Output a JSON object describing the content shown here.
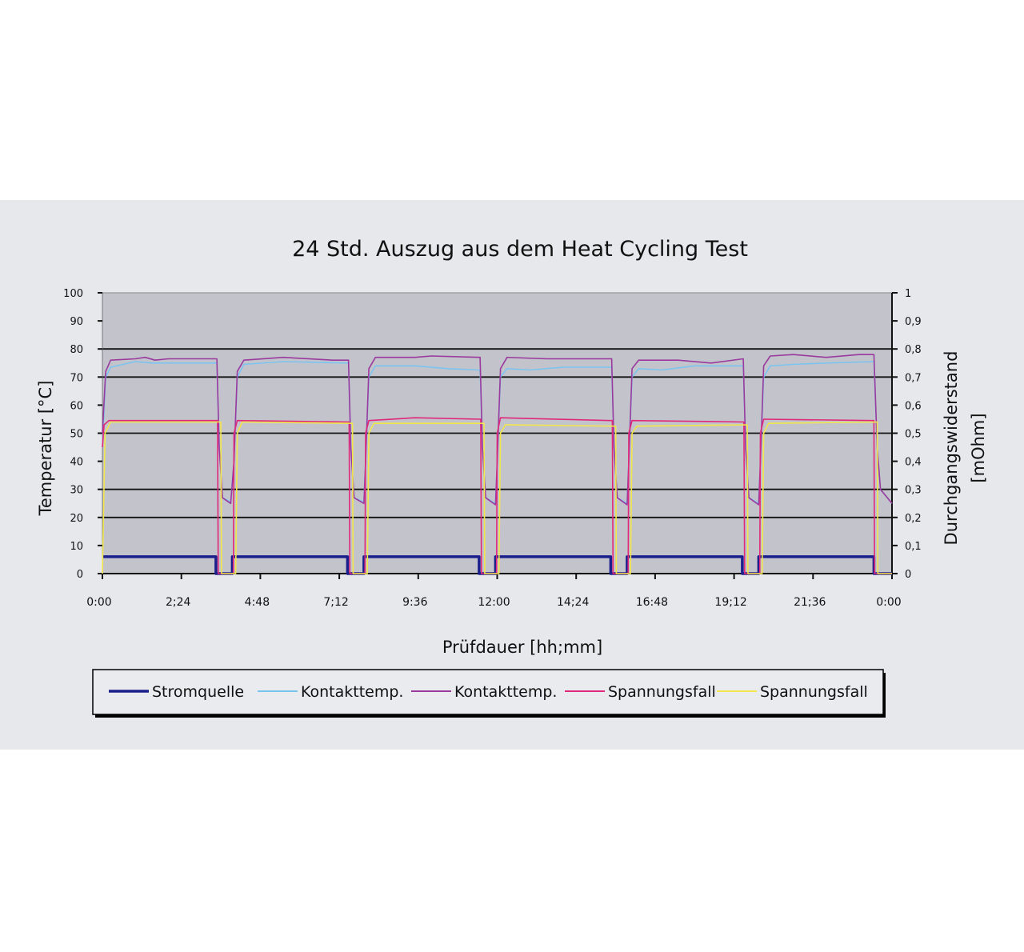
{
  "chart_data": {
    "type": "line",
    "title": "24 Std. Auszug aus dem Heat Cycling Test",
    "xlabel": "Prüfdauer [hh;mm]",
    "ylabel": "Temperatur [°C]",
    "y2label": [
      "Durchgangswiderstand",
      "[mOhm]"
    ],
    "xlim_hours": [
      0,
      24
    ],
    "ylim": [
      0,
      100
    ],
    "y2lim": [
      0,
      1
    ],
    "x_ticks": [
      {
        "h": 0,
        "label": "0:00"
      },
      {
        "h": 2.4,
        "label": "2;24"
      },
      {
        "h": 4.8,
        "label": "4:48"
      },
      {
        "h": 7.2,
        "label": "7;12"
      },
      {
        "h": 9.6,
        "label": "9:36"
      },
      {
        "h": 12,
        "label": "12:00"
      },
      {
        "h": 14.4,
        "label": "14;24"
      },
      {
        "h": 16.8,
        "label": "16:48"
      },
      {
        "h": 19.2,
        "label": "19;12"
      },
      {
        "h": 21.6,
        "label": "21;36"
      },
      {
        "h": 24,
        "label": "0:00"
      }
    ],
    "y_ticks": [
      "0",
      "10",
      "20",
      "30",
      "40",
      "50",
      "60",
      "70",
      "80",
      "90",
      "100"
    ],
    "y2_ticks": [
      "0",
      "0,1",
      "0,2",
      "0,3",
      "0,4",
      "0,5",
      "0,6",
      "0,7",
      "0,8",
      "0,9",
      "1"
    ],
    "gridlines": [
      20,
      30,
      50,
      70,
      80
    ],
    "legend_position": "bottom",
    "colors": {
      "background": "#e6e8ec",
      "plot": "#c3c3cb"
    },
    "series": [
      {
        "name": "Stromquelle",
        "axis": "left",
        "color": "#1a1f8c",
        "width": 3.5,
        "points": [
          [
            0,
            6
          ],
          [
            3.45,
            6
          ],
          [
            3.45,
            0
          ],
          [
            3.95,
            0
          ],
          [
            3.95,
            6
          ],
          [
            7.45,
            6
          ],
          [
            7.45,
            0
          ],
          [
            7.95,
            0
          ],
          [
            7.95,
            6
          ],
          [
            11.45,
            6
          ],
          [
            11.45,
            0
          ],
          [
            11.95,
            0
          ],
          [
            11.95,
            6
          ],
          [
            15.45,
            6
          ],
          [
            15.45,
            0
          ],
          [
            15.95,
            0
          ],
          [
            15.95,
            6
          ],
          [
            19.45,
            6
          ],
          [
            19.45,
            0
          ],
          [
            19.95,
            0
          ],
          [
            19.95,
            6
          ],
          [
            23.45,
            6
          ],
          [
            23.45,
            0
          ],
          [
            24,
            0
          ]
        ]
      },
      {
        "name": "Kontakttemp.",
        "axis": "left",
        "color": "#7cc4f0",
        "width": 1.6,
        "points": [
          [
            0,
            45
          ],
          [
            0.1,
            70
          ],
          [
            0.25,
            73.5
          ],
          [
            1.0,
            75.5
          ],
          [
            1.5,
            75
          ],
          [
            3.48,
            75
          ],
          [
            3.55,
            45
          ],
          [
            3.65,
            27
          ],
          [
            3.9,
            25.5
          ],
          [
            4.0,
            40
          ],
          [
            4.1,
            70
          ],
          [
            4.3,
            74.5
          ],
          [
            5.5,
            75.5
          ],
          [
            7.48,
            75
          ],
          [
            7.55,
            45
          ],
          [
            7.65,
            27
          ],
          [
            7.95,
            25.5
          ],
          [
            8.0,
            40
          ],
          [
            8.1,
            70
          ],
          [
            8.3,
            74
          ],
          [
            9.5,
            74
          ],
          [
            10.5,
            73
          ],
          [
            11.48,
            72.5
          ],
          [
            11.55,
            45
          ],
          [
            11.65,
            27
          ],
          [
            11.95,
            25
          ],
          [
            12.0,
            40
          ],
          [
            12.1,
            70
          ],
          [
            12.3,
            73
          ],
          [
            13,
            72.5
          ],
          [
            14,
            73.5
          ],
          [
            15.48,
            73.5
          ],
          [
            15.55,
            45
          ],
          [
            15.65,
            27
          ],
          [
            15.95,
            25
          ],
          [
            16.0,
            40
          ],
          [
            16.1,
            70
          ],
          [
            16.3,
            73
          ],
          [
            17,
            72.5
          ],
          [
            18,
            74
          ],
          [
            19.48,
            74
          ],
          [
            19.55,
            45
          ],
          [
            19.65,
            27
          ],
          [
            19.95,
            25
          ],
          [
            20.0,
            40
          ],
          [
            20.1,
            70
          ],
          [
            20.3,
            74
          ],
          [
            21,
            74.5
          ],
          [
            22,
            75
          ],
          [
            23.45,
            75.5
          ],
          [
            23.55,
            45
          ],
          [
            23.65,
            30
          ],
          [
            24,
            25
          ]
        ]
      },
      {
        "name": "Kontakttemp.",
        "axis": "left",
        "color": "#9a3a9e",
        "width": 1.6,
        "points": [
          [
            0,
            50
          ],
          [
            0.1,
            72
          ],
          [
            0.25,
            76
          ],
          [
            1.0,
            76.5
          ],
          [
            1.3,
            77
          ],
          [
            1.6,
            76
          ],
          [
            2.0,
            76.5
          ],
          [
            3.48,
            76.5
          ],
          [
            3.55,
            45
          ],
          [
            3.65,
            27
          ],
          [
            3.9,
            25
          ],
          [
            4.0,
            40
          ],
          [
            4.1,
            72
          ],
          [
            4.3,
            76
          ],
          [
            5.5,
            77
          ],
          [
            7.0,
            76
          ],
          [
            7.48,
            76
          ],
          [
            7.55,
            45
          ],
          [
            7.65,
            27
          ],
          [
            7.95,
            25
          ],
          [
            8.0,
            40
          ],
          [
            8.1,
            73
          ],
          [
            8.3,
            77
          ],
          [
            9.5,
            77
          ],
          [
            10,
            77.5
          ],
          [
            11.48,
            77
          ],
          [
            11.55,
            45
          ],
          [
            11.65,
            27
          ],
          [
            11.95,
            24.5
          ],
          [
            12.0,
            40
          ],
          [
            12.1,
            73
          ],
          [
            12.3,
            77
          ],
          [
            13.5,
            76.5
          ],
          [
            15.48,
            76.5
          ],
          [
            15.55,
            45
          ],
          [
            15.65,
            27
          ],
          [
            15.95,
            24.5
          ],
          [
            16.0,
            40
          ],
          [
            16.1,
            73
          ],
          [
            16.3,
            76
          ],
          [
            17.5,
            76
          ],
          [
            18.5,
            75
          ],
          [
            19.48,
            76.5
          ],
          [
            19.55,
            45
          ],
          [
            19.65,
            27
          ],
          [
            19.95,
            24.5
          ],
          [
            20.0,
            40
          ],
          [
            20.1,
            74
          ],
          [
            20.3,
            77.5
          ],
          [
            21,
            78
          ],
          [
            22,
            77
          ],
          [
            23,
            78
          ],
          [
            23.45,
            78
          ],
          [
            23.55,
            45
          ],
          [
            23.65,
            30
          ],
          [
            24,
            25
          ]
        ]
      },
      {
        "name": "Spannungsfall",
        "axis": "right",
        "color": "#e0287a",
        "width": 1.6,
        "points": [
          [
            0,
            0.45
          ],
          [
            0.05,
            0.53
          ],
          [
            0.2,
            0.545
          ],
          [
            3.5,
            0.545
          ],
          [
            3.52,
            0
          ],
          [
            3.98,
            0
          ],
          [
            4.0,
            0.5
          ],
          [
            4.1,
            0.545
          ],
          [
            7.5,
            0.54
          ],
          [
            7.52,
            0
          ],
          [
            7.98,
            0
          ],
          [
            8.0,
            0.5
          ],
          [
            8.1,
            0.545
          ],
          [
            9.5,
            0.555
          ],
          [
            11.5,
            0.55
          ],
          [
            11.52,
            0
          ],
          [
            11.98,
            0
          ],
          [
            12.0,
            0.5
          ],
          [
            12.1,
            0.555
          ],
          [
            15.5,
            0.545
          ],
          [
            15.52,
            0
          ],
          [
            15.98,
            0
          ],
          [
            16,
            0.5
          ],
          [
            16.1,
            0.545
          ],
          [
            19.5,
            0.54
          ],
          [
            19.52,
            0
          ],
          [
            19.98,
            0
          ],
          [
            20,
            0.5
          ],
          [
            20.1,
            0.55
          ],
          [
            23.45,
            0.545
          ],
          [
            23.47,
            0
          ],
          [
            24,
            0
          ]
        ]
      },
      {
        "name": "Spannungsfall",
        "axis": "right",
        "color": "#f2e64a",
        "width": 1.6,
        "points": [
          [
            0,
            0
          ],
          [
            0.08,
            0.5
          ],
          [
            0.25,
            0.54
          ],
          [
            3.6,
            0.54
          ],
          [
            3.62,
            0
          ],
          [
            4.05,
            0
          ],
          [
            4.1,
            0.5
          ],
          [
            4.25,
            0.54
          ],
          [
            7.6,
            0.535
          ],
          [
            7.62,
            0
          ],
          [
            8.05,
            0
          ],
          [
            8.1,
            0.5
          ],
          [
            8.25,
            0.535
          ],
          [
            11.6,
            0.535
          ],
          [
            11.62,
            0
          ],
          [
            12.05,
            0
          ],
          [
            12.1,
            0.5
          ],
          [
            12.25,
            0.53
          ],
          [
            15.6,
            0.525
          ],
          [
            15.62,
            0
          ],
          [
            16.05,
            0
          ],
          [
            16.1,
            0.5
          ],
          [
            16.25,
            0.525
          ],
          [
            19.6,
            0.53
          ],
          [
            19.62,
            0
          ],
          [
            20.05,
            0
          ],
          [
            20.1,
            0.5
          ],
          [
            20.25,
            0.535
          ],
          [
            23.55,
            0.54
          ],
          [
            23.57,
            0
          ],
          [
            24,
            0
          ]
        ]
      }
    ]
  }
}
